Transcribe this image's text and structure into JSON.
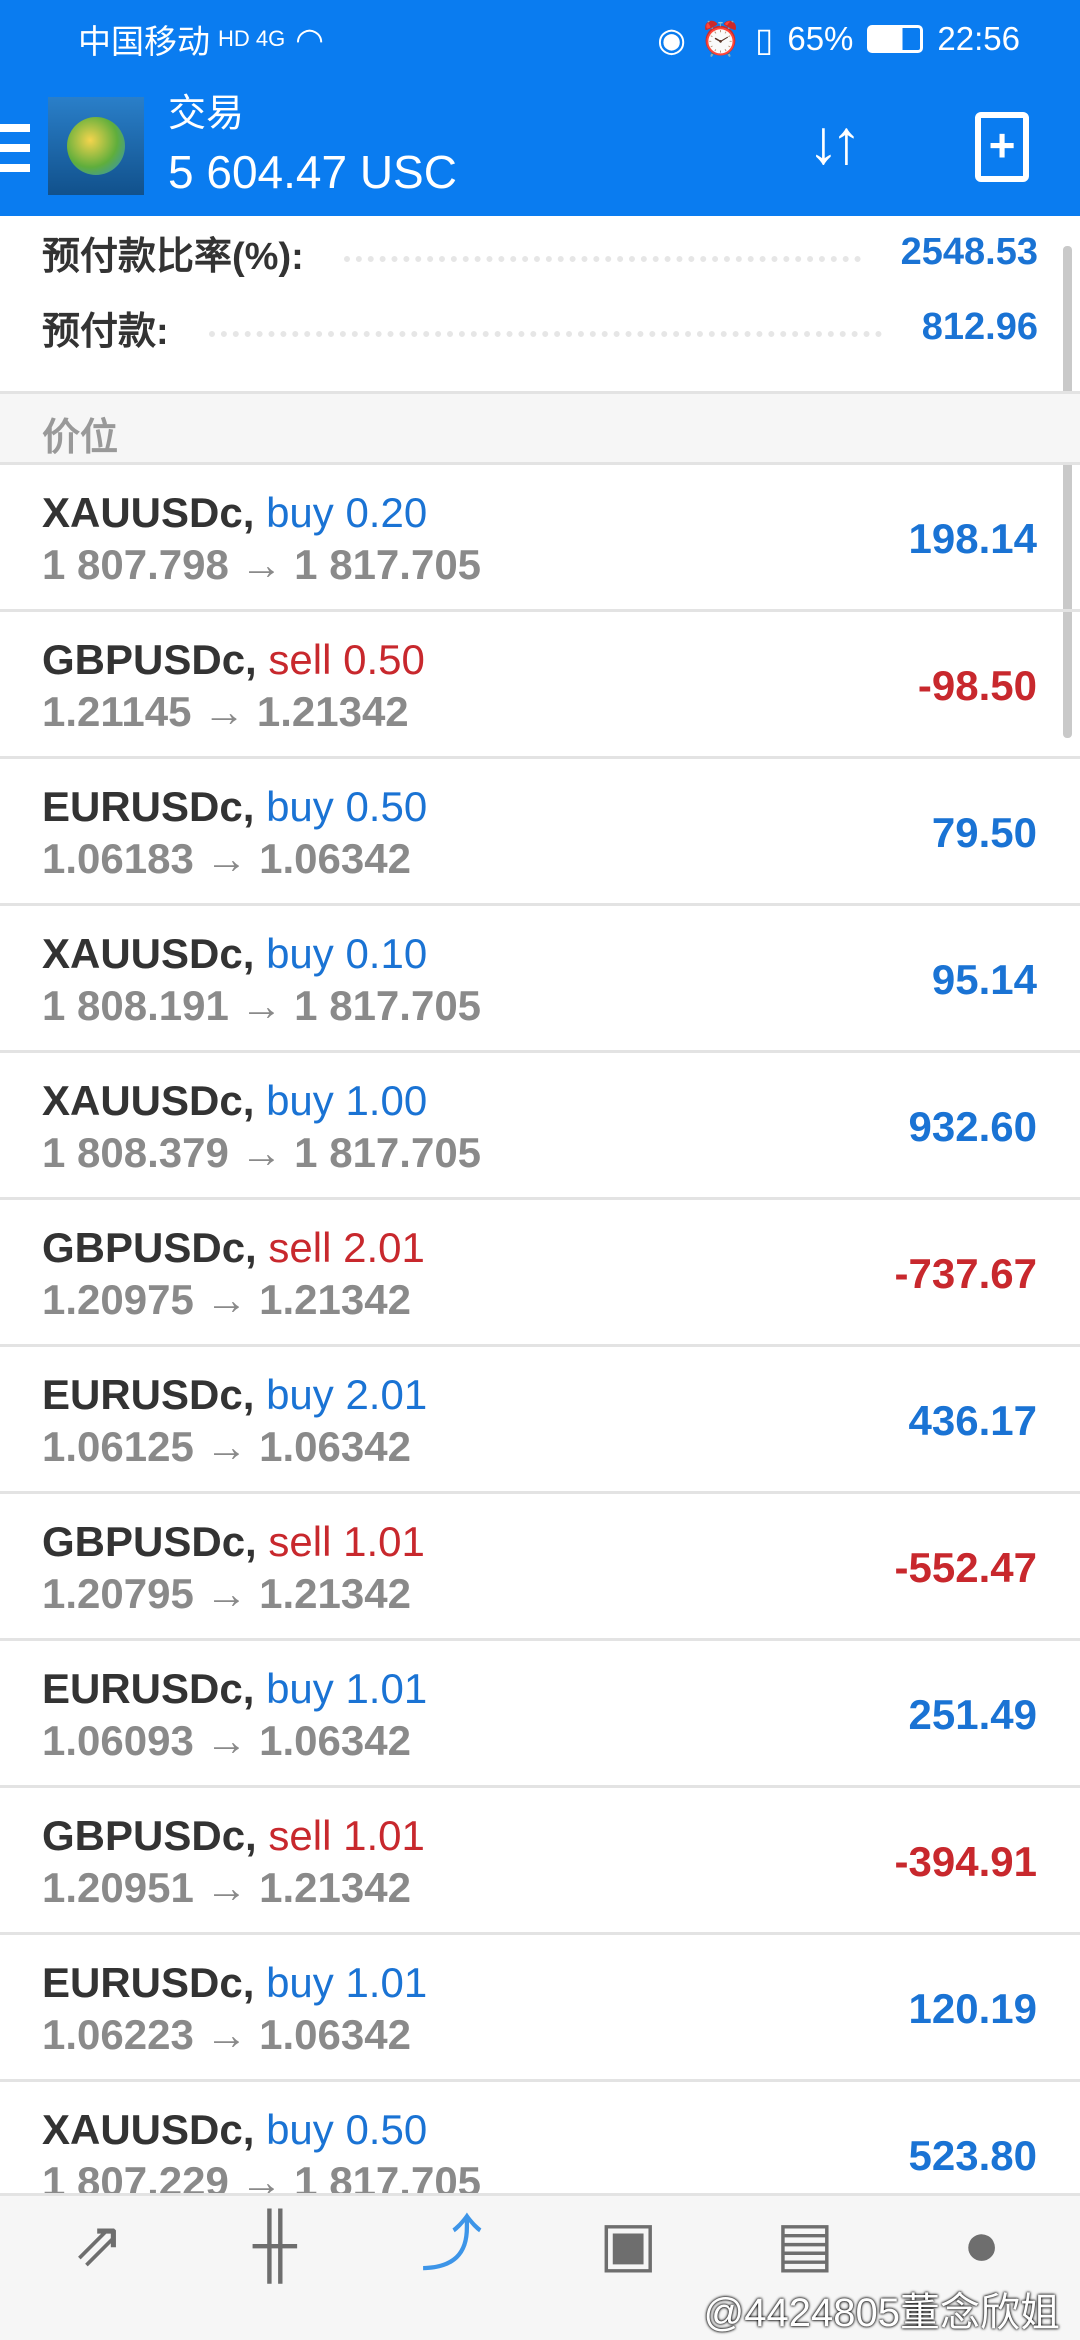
{
  "status_bar": {
    "carrier": "中国移动",
    "network": "HD 4G",
    "battery": "65%",
    "time": "22:56"
  },
  "header": {
    "title": "交易",
    "balance": "5 604.47 USC",
    "icons": [
      "menu-icon",
      "metatrader-logo",
      "sort-icon",
      "new-order-icon"
    ]
  },
  "margin": [
    {
      "label": "预付款比率(%):",
      "value": "2548.53"
    },
    {
      "label": "预付款:",
      "value": "812.96"
    }
  ],
  "section_title": "价位",
  "positions": [
    {
      "symbol": "XAUUSDc,",
      "type": "buy",
      "lot": "buy 0.20",
      "prices": "1 807.798 → 1 817.705",
      "profit": "198.14"
    },
    {
      "symbol": "GBPUSDc,",
      "type": "sell",
      "lot": "sell 0.50",
      "prices": "1.21145 → 1.21342",
      "profit": "-98.50"
    },
    {
      "symbol": "EURUSDc,",
      "type": "buy",
      "lot": "buy 0.50",
      "prices": "1.06183 → 1.06342",
      "profit": "79.50"
    },
    {
      "symbol": "XAUUSDc,",
      "type": "buy",
      "lot": "buy 0.10",
      "prices": "1 808.191 → 1 817.705",
      "profit": "95.14"
    },
    {
      "symbol": "XAUUSDc,",
      "type": "buy",
      "lot": "buy 1.00",
      "prices": "1 808.379 → 1 817.705",
      "profit": "932.60"
    },
    {
      "symbol": "GBPUSDc,",
      "type": "sell",
      "lot": "sell 2.01",
      "prices": "1.20975 → 1.21342",
      "profit": "-737.67"
    },
    {
      "symbol": "EURUSDc,",
      "type": "buy",
      "lot": "buy 2.01",
      "prices": "1.06125 → 1.06342",
      "profit": "436.17"
    },
    {
      "symbol": "GBPUSDc,",
      "type": "sell",
      "lot": "sell 1.01",
      "prices": "1.20795 → 1.21342",
      "profit": "-552.47"
    },
    {
      "symbol": "EURUSDc,",
      "type": "buy",
      "lot": "buy 1.01",
      "prices": "1.06093 → 1.06342",
      "profit": "251.49"
    },
    {
      "symbol": "GBPUSDc,",
      "type": "sell",
      "lot": "sell 1.01",
      "prices": "1.20951 → 1.21342",
      "profit": "-394.91"
    },
    {
      "symbol": "EURUSDc,",
      "type": "buy",
      "lot": "buy 1.01",
      "prices": "1.06223 → 1.06342",
      "profit": "120.19"
    },
    {
      "symbol": "XAUUSDc,",
      "type": "buy",
      "lot": "buy 0.50",
      "prices": "1 807.229 → 1 817.705",
      "profit": "523.80"
    }
  ],
  "colors": {
    "header": "#0a7cf0",
    "buy": "#1a73d4",
    "sell": "#c8282d",
    "active_nav": "#3d95e8"
  },
  "bottom_nav": [
    {
      "icon": "quotes-icon"
    },
    {
      "icon": "chart-icon"
    },
    {
      "icon": "trade-icon",
      "active": true
    },
    {
      "icon": "history-icon"
    },
    {
      "icon": "news-icon"
    },
    {
      "icon": "chat-icon"
    }
  ],
  "watermark": "@4424805董念欣姐"
}
